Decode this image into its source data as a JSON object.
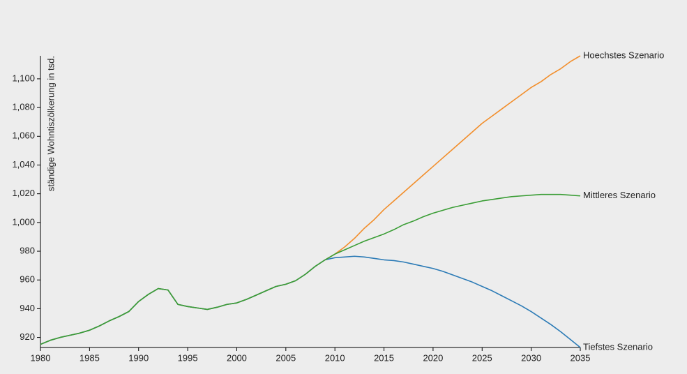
{
  "chart_data": {
    "type": "line",
    "y_label": "ständige Wohntiszölkerung in tsd.",
    "x": [
      1980,
      1981,
      1982,
      1983,
      1984,
      1985,
      1986,
      1987,
      1988,
      1989,
      1990,
      1991,
      1992,
      1993,
      1994,
      1995,
      1996,
      1997,
      1998,
      1999,
      2000,
      2001,
      2002,
      2003,
      2004,
      2005,
      2006,
      2007,
      2008,
      2009,
      2010,
      2011,
      2012,
      2013,
      2014,
      2015,
      2016,
      2017,
      2018,
      2019,
      2020,
      2021,
      2022,
      2023,
      2024,
      2025,
      2026,
      2027,
      2028,
      2029,
      2030,
      2031,
      2032,
      2033,
      2034,
      2035
    ],
    "series": [
      {
        "name": "Hoechstes Szenario",
        "color": "#f28e2b",
        "values": [
          915.2,
          918,
          920,
          921.5,
          923,
          925,
          928,
          931.5,
          934.5,
          938,
          945,
          950,
          954,
          953,
          943,
          941.5,
          940.5,
          939.5,
          941,
          943,
          944,
          946.5,
          949.5,
          952.5,
          955.5,
          957,
          959.5,
          964,
          969.5,
          974,
          978,
          983,
          989,
          996,
          1002,
          1009,
          1015,
          1021,
          1027,
          1033,
          1039,
          1045,
          1051,
          1057,
          1063,
          1069,
          1074,
          1079,
          1084,
          1089,
          1094,
          1098,
          1103,
          1107,
          1112,
          1116
        ]
      },
      {
        "name": "Tiefstes Szenario",
        "color": "#2c7bb6",
        "values": [
          915.2,
          918,
          920,
          921.5,
          923,
          925,
          928,
          931.5,
          934.5,
          938,
          945,
          950,
          954,
          953,
          943,
          941.5,
          940.5,
          939.5,
          941,
          943,
          944,
          946.5,
          949.5,
          952.5,
          955.5,
          957,
          959.5,
          964,
          969.5,
          974,
          975.5,
          976,
          976.5,
          976,
          975,
          974,
          973.5,
          972.5,
          971,
          969.5,
          968,
          966,
          963.5,
          961,
          958.5,
          955.5,
          952.5,
          949,
          945.5,
          942,
          938,
          933.5,
          929,
          924,
          918.5,
          913
        ]
      },
      {
        "name": "Mittleres Szenario",
        "color": "#3a9d35",
        "values": [
          915.2,
          918,
          920,
          921.5,
          923,
          925,
          928,
          931.5,
          934.5,
          938,
          945,
          950,
          954,
          953,
          943,
          941.5,
          940.5,
          939.5,
          941,
          943,
          944,
          946.5,
          949.5,
          952.5,
          955.5,
          957,
          959.5,
          964,
          969.5,
          974,
          978,
          981,
          984,
          987,
          989.5,
          992,
          995,
          998.5,
          1001,
          1004,
          1006.5,
          1008.5,
          1010.5,
          1012,
          1013.5,
          1015,
          1016,
          1017,
          1018,
          1018.5,
          1019,
          1019.5,
          1019.5,
          1019.5,
          1019,
          1018.5
        ]
      }
    ],
    "xlim": [
      1980,
      2035
    ],
    "xticks": [
      1980,
      1985,
      1990,
      1995,
      2000,
      2005,
      2010,
      2015,
      2020,
      2025,
      2030,
      2035
    ],
    "ylim": [
      913,
      1116
    ],
    "yticks": [
      920,
      940,
      960,
      980,
      {
        "value": 1000,
        "label": "1,000"
      },
      {
        "value": 1020,
        "label": "1,020"
      },
      {
        "value": 1040,
        "label": "1,040"
      },
      {
        "value": 1060,
        "label": "1,060"
      },
      {
        "value": 1080,
        "label": "1,080"
      },
      {
        "value": 1100,
        "label": "1,100"
      }
    ]
  }
}
